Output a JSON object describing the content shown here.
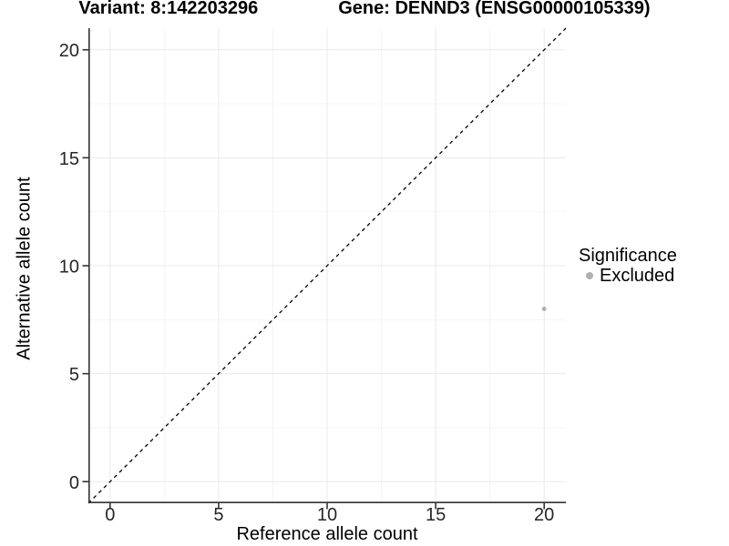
{
  "title": {
    "variant_label": "Variant: 8:142203296",
    "gene_label": "Gene: DENND3 (ENSG00000105339)"
  },
  "axes": {
    "x_label": "Reference allele count",
    "y_label": "Alternative allele count"
  },
  "legend": {
    "title": "Significance",
    "entries": [
      {
        "label": "Excluded",
        "color": "#b0b0b0"
      }
    ]
  },
  "chart_data": {
    "type": "scatter",
    "title": "Variant: 8:142203296    Gene: DENND3 (ENSG00000105339)",
    "xlabel": "Reference allele count",
    "ylabel": "Alternative allele count",
    "xlim": [
      -1,
      21
    ],
    "ylim": [
      -1,
      21
    ],
    "x_ticks": [
      0,
      5,
      10,
      15,
      20
    ],
    "y_ticks": [
      0,
      5,
      10,
      15,
      20
    ],
    "minor_ticks": [
      2.5,
      7.5,
      12.5,
      17.5
    ],
    "grid": true,
    "legend_position": "right",
    "series": [
      {
        "name": "Excluded",
        "color": "#b0b0b0",
        "point_radius": 2.4,
        "points": [
          {
            "x": 20,
            "y": 8
          }
        ]
      }
    ],
    "reference_line": {
      "type": "identity",
      "style": "dashed",
      "color": "#000000",
      "dash": "4,4"
    },
    "colors": {
      "grid_major": "#e9e9e9",
      "grid_minor": "#f4f4f4",
      "axis": "#333333",
      "background": "#ffffff"
    }
  }
}
